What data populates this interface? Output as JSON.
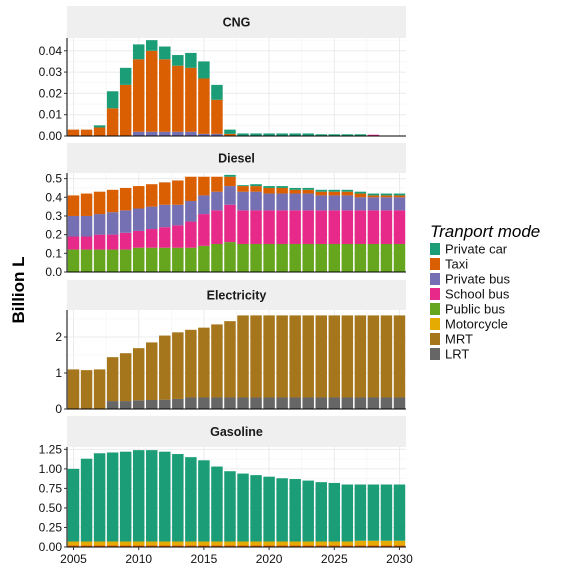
{
  "chart_data": {
    "type": "bar",
    "stacked": true,
    "faceted": true,
    "ylabel": "Billion L",
    "xlabel": "",
    "x": [
      2005,
      2006,
      2007,
      2008,
      2009,
      2010,
      2011,
      2012,
      2013,
      2014,
      2015,
      2016,
      2017,
      2018,
      2019,
      2020,
      2021,
      2022,
      2023,
      2024,
      2025,
      2026,
      2027,
      2028,
      2029,
      2030
    ],
    "x_ticks": [
      "2005",
      "2010",
      "2015",
      "2020",
      "2025",
      "2030"
    ],
    "xlim": [
      2004.5,
      2030.5
    ],
    "grid": true,
    "legend": {
      "title": "Tranport mode",
      "position": "right",
      "entries": [
        {
          "name": "Private car",
          "color": "#1B9E77"
        },
        {
          "name": "Taxi",
          "color": "#D95F02"
        },
        {
          "name": "Private bus",
          "color": "#7570B3"
        },
        {
          "name": "School bus",
          "color": "#E7298A"
        },
        {
          "name": "Public bus",
          "color": "#66A61E"
        },
        {
          "name": "Motorcycle",
          "color": "#E6AB02"
        },
        {
          "name": "MRT",
          "color": "#A6761D"
        },
        {
          "name": "LRT",
          "color": "#666666"
        }
      ]
    },
    "panels": [
      {
        "title": "CNG",
        "ylim": [
          0,
          0.046
        ],
        "y_ticks": [
          0.0,
          0.01,
          0.02,
          0.03,
          0.04
        ],
        "y_tick_labels": [
          "0.00",
          "0.01",
          "0.02",
          "0.03",
          "0.04"
        ],
        "series": [
          {
            "name": "Private bus",
            "values": [
              0,
              0,
              0,
              0,
              0,
              0.002,
              0.002,
              0.002,
              0.002,
              0.002,
              0.001,
              0.001,
              0,
              0,
              0,
              0,
              0,
              0,
              0,
              0,
              0,
              0,
              0,
              0,
              0,
              0
            ]
          },
          {
            "name": "Taxi",
            "values": [
              0.003,
              0.003,
              0.004,
              0.013,
              0.024,
              0.034,
              0.038,
              0.034,
              0.031,
              0.03,
              0.026,
              0.016,
              0.001,
              0,
              0,
              0,
              0,
              0,
              0,
              0,
              0,
              0,
              0,
              0,
              0,
              0
            ]
          },
          {
            "name": "School bus",
            "values": [
              0,
              0,
              0,
              0,
              0,
              0,
              0,
              0,
              0,
              0,
              0,
              0,
              0,
              0,
              0,
              0,
              0,
              0,
              0,
              0,
              0,
              0,
              0,
              0.0006,
              0,
              0
            ]
          },
          {
            "name": "Private car",
            "values": [
              0,
              0,
              0.001,
              0.008,
              0.008,
              0.007,
              0.005,
              0.006,
              0.005,
              0.007,
              0.008,
              0.007,
              0.002,
              0.0012,
              0.0012,
              0.0012,
              0.0012,
              0.0012,
              0.0012,
              0.0008,
              0.0008,
              0.0008,
              0.0008,
              0,
              0,
              0
            ]
          }
        ]
      },
      {
        "title": "Diesel",
        "ylim": [
          0,
          0.53
        ],
        "y_ticks": [
          0.0,
          0.1,
          0.2,
          0.3,
          0.4,
          0.5
        ],
        "y_tick_labels": [
          "0.0",
          "0.1",
          "0.2",
          "0.3",
          "0.4",
          "0.5"
        ],
        "series": [
          {
            "name": "Public bus",
            "values": [
              0.12,
              0.12,
              0.12,
              0.12,
              0.12,
              0.13,
              0.13,
              0.13,
              0.13,
              0.13,
              0.14,
              0.15,
              0.16,
              0.15,
              0.15,
              0.15,
              0.15,
              0.15,
              0.15,
              0.15,
              0.15,
              0.15,
              0.15,
              0.15,
              0.15,
              0.15
            ]
          },
          {
            "name": "School bus",
            "values": [
              0.07,
              0.07,
              0.08,
              0.08,
              0.09,
              0.09,
              0.1,
              0.11,
              0.12,
              0.14,
              0.17,
              0.18,
              0.2,
              0.18,
              0.18,
              0.18,
              0.18,
              0.18,
              0.18,
              0.18,
              0.18,
              0.18,
              0.18,
              0.18,
              0.18,
              0.18
            ]
          },
          {
            "name": "Private bus",
            "values": [
              0.11,
              0.11,
              0.11,
              0.12,
              0.12,
              0.12,
              0.12,
              0.12,
              0.11,
              0.11,
              0.1,
              0.1,
              0.1,
              0.1,
              0.1,
              0.09,
              0.09,
              0.09,
              0.09,
              0.08,
              0.08,
              0.08,
              0.07,
              0.07,
              0.07,
              0.07
            ]
          },
          {
            "name": "Taxi",
            "values": [
              0.11,
              0.12,
              0.12,
              0.12,
              0.12,
              0.12,
              0.12,
              0.12,
              0.13,
              0.13,
              0.1,
              0.08,
              0.05,
              0.03,
              0.03,
              0.03,
              0.03,
              0.02,
              0.02,
              0.02,
              0.02,
              0.02,
              0.02,
              0.01,
              0.01,
              0.01
            ]
          },
          {
            "name": "Private car",
            "values": [
              0,
              0,
              0,
              0,
              0,
              0,
              0,
              0,
              0,
              0,
              0,
              0,
              0.01,
              0.005,
              0.01,
              0.01,
              0.01,
              0.01,
              0.01,
              0.01,
              0.01,
              0.01,
              0.01,
              0.01,
              0.01,
              0.01
            ]
          }
        ]
      },
      {
        "title": "Electricity",
        "ylim": [
          0,
          2.75
        ],
        "y_ticks": [
          0,
          1,
          2
        ],
        "y_tick_labels": [
          "0",
          "1",
          "2"
        ],
        "series": [
          {
            "name": "LRT",
            "values": [
              0,
              0,
              0,
              0.22,
              0.22,
              0.24,
              0.25,
              0.26,
              0.28,
              0.32,
              0.32,
              0.32,
              0.32,
              0.32,
              0.32,
              0.32,
              0.32,
              0.32,
              0.32,
              0.32,
              0.32,
              0.32,
              0.32,
              0.32,
              0.32,
              0.32
            ]
          },
          {
            "name": "MRT",
            "values": [
              1.1,
              1.08,
              1.1,
              1.22,
              1.33,
              1.45,
              1.6,
              1.78,
              1.85,
              1.88,
              1.94,
              2.03,
              2.12,
              2.28,
              2.28,
              2.28,
              2.28,
              2.28,
              2.28,
              2.28,
              2.28,
              2.28,
              2.28,
              2.28,
              2.28,
              2.28
            ]
          }
        ]
      },
      {
        "title": "Gasoline",
        "ylim": [
          0,
          1.28
        ],
        "y_ticks": [
          0.0,
          0.25,
          0.5,
          0.75,
          1.0,
          1.25
        ],
        "y_tick_labels": [
          "0.00",
          "0.25",
          "0.50",
          "0.75",
          "1.00",
          "1.25"
        ],
        "series": [
          {
            "name": "Taxi",
            "values": [
              0.02,
              0.02,
              0.02,
              0.02,
              0.02,
              0.02,
              0.02,
              0.02,
              0.02,
              0.02,
              0.02,
              0.02,
              0.02,
              0.02,
              0.02,
              0.02,
              0.02,
              0.02,
              0.02,
              0.02,
              0.02,
              0.02,
              0.02,
              0.02,
              0.02,
              0.02
            ]
          },
          {
            "name": "Motorcycle",
            "values": [
              0.05,
              0.05,
              0.05,
              0.05,
              0.05,
              0.05,
              0.05,
              0.05,
              0.05,
              0.05,
              0.05,
              0.05,
              0.05,
              0.05,
              0.05,
              0.05,
              0.05,
              0.05,
              0.05,
              0.05,
              0.05,
              0.05,
              0.06,
              0.06,
              0.06,
              0.06
            ]
          },
          {
            "name": "Private car",
            "values": [
              0.93,
              1.06,
              1.13,
              1.14,
              1.15,
              1.17,
              1.17,
              1.15,
              1.12,
              1.08,
              1.04,
              0.96,
              0.9,
              0.87,
              0.85,
              0.83,
              0.81,
              0.8,
              0.78,
              0.76,
              0.75,
              0.73,
              0.72,
              0.72,
              0.72,
              0.72
            ]
          }
        ]
      }
    ]
  }
}
